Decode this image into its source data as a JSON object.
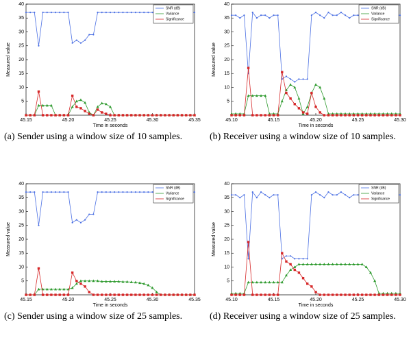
{
  "chart_data": [
    {
      "type": "line",
      "caption": "(a) Sender using a window size of 10 samples.",
      "xlabel": "Time in seconds",
      "ylabel": "Measured value",
      "xlim": [
        45.15,
        45.35
      ],
      "xticks": [
        45.15,
        {
          "value": 45.2,
          "label": "45.20"
        },
        45.25,
        {
          "value": 45.3,
          "label": "45.30"
        },
        45.35
      ],
      "ylim": [
        0,
        40
      ],
      "yticks": [
        5,
        10,
        15,
        20,
        25,
        30,
        35,
        40
      ],
      "legend": "upper right",
      "x": [
        45.15,
        45.155,
        45.16,
        45.165,
        45.17,
        45.175,
        45.18,
        45.185,
        45.19,
        45.195,
        45.2,
        45.205,
        45.21,
        45.215,
        45.22,
        45.225,
        45.23,
        45.235,
        45.24,
        45.245,
        45.25,
        45.255,
        45.26,
        45.265,
        45.27,
        45.275,
        45.28,
        45.285,
        45.29,
        45.295,
        45.3,
        45.305,
        45.31,
        45.315,
        45.32,
        45.325,
        45.33,
        45.335,
        45.34,
        45.345,
        45.35
      ],
      "series": [
        {
          "name": "SNR (dB)",
          "color": "#4a6fe3",
          "values": [
            37,
            37,
            37,
            25,
            37,
            37,
            37,
            37,
            37,
            37,
            37,
            26,
            27,
            26,
            27,
            29,
            29,
            37,
            37,
            37,
            37,
            37,
            37,
            37,
            37,
            37,
            37,
            37,
            37,
            37,
            37,
            37,
            37,
            37,
            37,
            37,
            37,
            37,
            37,
            37,
            37
          ]
        },
        {
          "name": "Variance",
          "color": "#2e9a2e",
          "values": [
            0,
            0,
            0,
            3.5,
            3.5,
            3.5,
            3.5,
            0,
            0,
            0,
            0,
            3,
            5,
            5.5,
            4.5,
            1,
            0,
            3,
            4.3,
            4,
            3,
            0,
            0,
            0,
            0,
            0,
            0,
            0,
            0,
            0,
            0,
            0,
            0,
            0,
            0,
            0,
            0,
            0,
            0,
            0,
            0
          ]
        },
        {
          "name": "Significance",
          "color": "#d62728",
          "values": [
            0,
            0,
            0,
            8.5,
            0,
            0,
            0,
            0,
            0,
            0,
            0,
            7,
            3,
            2.5,
            1.5,
            0.5,
            0,
            2,
            1,
            0.5,
            0,
            0,
            0,
            0,
            0,
            0,
            0,
            0,
            0,
            0,
            0,
            0,
            0,
            0,
            0,
            0,
            0,
            0,
            0,
            0,
            0
          ]
        }
      ]
    },
    {
      "type": "line",
      "caption": "(b) Receiver using a window size of 10 samples.",
      "xlabel": "Time in seconds",
      "ylabel": "Measured value",
      "xlim": [
        45.1,
        45.3
      ],
      "xticks": [
        {
          "value": 45.1,
          "label": "45.10"
        },
        45.15,
        {
          "value": 45.2,
          "label": "45.20"
        },
        45.25,
        {
          "value": 45.3,
          "label": "45.30"
        }
      ],
      "ylim": [
        0,
        40
      ],
      "yticks": [
        5,
        10,
        15,
        20,
        25,
        30,
        35,
        40
      ],
      "legend": "upper right",
      "x": [
        45.1,
        45.105,
        45.11,
        45.115,
        45.12,
        45.125,
        45.13,
        45.135,
        45.14,
        45.145,
        45.15,
        45.155,
        45.16,
        45.165,
        45.17,
        45.175,
        45.18,
        45.185,
        45.19,
        45.195,
        45.2,
        45.205,
        45.21,
        45.215,
        45.22,
        45.225,
        45.23,
        45.235,
        45.24,
        45.245,
        45.25,
        45.255,
        45.26,
        45.265,
        45.27,
        45.275,
        45.28,
        45.285,
        45.29,
        45.295,
        45.3
      ],
      "series": [
        {
          "name": "SNR (dB)",
          "color": "#4a6fe3",
          "values": [
            36,
            36,
            35,
            36,
            15,
            37,
            35,
            36,
            36,
            35,
            36,
            36,
            13,
            14,
            13,
            12,
            13,
            13,
            13,
            36,
            37,
            36,
            35,
            37,
            36,
            36,
            37,
            36,
            35,
            36,
            36,
            36,
            36,
            37,
            36,
            36,
            36,
            36,
            36,
            36,
            36
          ]
        },
        {
          "name": "Variance",
          "color": "#2e9a2e",
          "values": [
            0.5,
            0.5,
            0.5,
            0.5,
            7,
            7,
            7,
            7,
            7,
            0.5,
            0.5,
            0.5,
            5,
            9,
            11,
            10,
            6,
            0.5,
            3,
            8,
            11,
            10,
            6,
            0.5,
            0.5,
            0.5,
            0.5,
            0.5,
            0.5,
            0.5,
            0.5,
            0.5,
            0.5,
            0.5,
            0.5,
            0.5,
            0.5,
            0.5,
            0.5,
            0.5,
            0.5
          ]
        },
        {
          "name": "Significance",
          "color": "#d62728",
          "values": [
            0,
            0,
            0,
            0,
            17,
            0,
            0,
            0,
            0,
            0,
            0,
            0,
            15.5,
            8,
            6,
            4,
            2.5,
            1,
            0.5,
            8,
            3,
            1,
            0,
            0,
            0,
            0,
            0,
            0,
            0,
            0,
            0,
            0,
            0,
            0,
            0,
            0,
            0,
            0,
            0,
            0,
            0
          ]
        }
      ]
    },
    {
      "type": "line",
      "caption": "(c) Sender using a window size of 25 samples.",
      "xlabel": "Time in seconds",
      "ylabel": "Measured value",
      "xlim": [
        45.15,
        45.35
      ],
      "xticks": [
        45.15,
        {
          "value": 45.2,
          "label": "45.20"
        },
        45.25,
        {
          "value": 45.3,
          "label": "45.30"
        },
        45.35
      ],
      "ylim": [
        0,
        40
      ],
      "yticks": [
        5,
        10,
        15,
        20,
        25,
        30,
        35,
        40
      ],
      "legend": "upper right",
      "x": [
        45.15,
        45.155,
        45.16,
        45.165,
        45.17,
        45.175,
        45.18,
        45.185,
        45.19,
        45.195,
        45.2,
        45.205,
        45.21,
        45.215,
        45.22,
        45.225,
        45.23,
        45.235,
        45.24,
        45.245,
        45.25,
        45.255,
        45.26,
        45.265,
        45.27,
        45.275,
        45.28,
        45.285,
        45.29,
        45.295,
        45.3,
        45.305,
        45.31,
        45.315,
        45.32,
        45.325,
        45.33,
        45.335,
        45.34,
        45.345,
        45.35
      ],
      "series": [
        {
          "name": "SNR (dB)",
          "color": "#4a6fe3",
          "values": [
            37,
            37,
            37,
            25,
            37,
            37,
            37,
            37,
            37,
            37,
            37,
            26,
            27,
            26,
            27,
            29,
            29,
            37,
            37,
            37,
            37,
            37,
            37,
            37,
            37,
            37,
            37,
            37,
            37,
            37,
            37,
            37,
            37,
            37,
            37,
            37,
            37,
            37,
            37,
            37,
            37
          ]
        },
        {
          "name": "Variance",
          "color": "#2e9a2e",
          "values": [
            0,
            0,
            0,
            2,
            2,
            2,
            2,
            2,
            2,
            2,
            2,
            2.5,
            4,
            5,
            5,
            5,
            5,
            5,
            4.8,
            4.8,
            4.8,
            4.8,
            4.8,
            4.7,
            4.7,
            4.6,
            4.5,
            4.3,
            4,
            3.5,
            2.5,
            1,
            0,
            0,
            0,
            0,
            0,
            0,
            0,
            0,
            0
          ]
        },
        {
          "name": "Significance",
          "color": "#d62728",
          "values": [
            0,
            0,
            0,
            9.5,
            0,
            0,
            0,
            0,
            0,
            0,
            0,
            8,
            5,
            4,
            3,
            1,
            0,
            0,
            0,
            0,
            0,
            0,
            0,
            0,
            0,
            0,
            0,
            0,
            0,
            0,
            0,
            0,
            0,
            0,
            0,
            0,
            0,
            0,
            0,
            0,
            0
          ]
        }
      ]
    },
    {
      "type": "line",
      "caption": "(d) Receiver using a window size of 25 samples.",
      "xlabel": "Time in seconds",
      "ylabel": "Measured value",
      "xlim": [
        45.1,
        45.3
      ],
      "xticks": [
        {
          "value": 45.1,
          "label": "45.10"
        },
        45.15,
        {
          "value": 45.2,
          "label": "45.20"
        },
        45.25,
        {
          "value": 45.3,
          "label": "45.30"
        }
      ],
      "ylim": [
        0,
        40
      ],
      "yticks": [
        5,
        10,
        15,
        20,
        25,
        30,
        35,
        40
      ],
      "legend": "upper right",
      "x": [
        45.1,
        45.105,
        45.11,
        45.115,
        45.12,
        45.125,
        45.13,
        45.135,
        45.14,
        45.145,
        45.15,
        45.155,
        45.16,
        45.165,
        45.17,
        45.175,
        45.18,
        45.185,
        45.19,
        45.195,
        45.2,
        45.205,
        45.21,
        45.215,
        45.22,
        45.225,
        45.23,
        45.235,
        45.24,
        45.245,
        45.25,
        45.255,
        45.26,
        45.265,
        45.27,
        45.275,
        45.28,
        45.285,
        45.29,
        45.295,
        45.3
      ],
      "series": [
        {
          "name": "SNR (dB)",
          "color": "#4a6fe3",
          "values": [
            36,
            36,
            35,
            36,
            13,
            37,
            35,
            37,
            36,
            35,
            36,
            36,
            13,
            14,
            14,
            13,
            13,
            13,
            13,
            36,
            37,
            36,
            35,
            37,
            36,
            36,
            37,
            36,
            35,
            36,
            36,
            36,
            36,
            37,
            36,
            36,
            36,
            36,
            36,
            36,
            36
          ]
        },
        {
          "name": "Variance",
          "color": "#2e9a2e",
          "values": [
            0.5,
            0.5,
            0.5,
            0.5,
            4.5,
            4.5,
            4.5,
            4.5,
            4.5,
            4.5,
            4.5,
            4.5,
            4.5,
            7,
            9,
            10,
            11,
            11,
            11,
            11,
            11,
            11,
            11,
            11,
            11,
            11,
            11,
            11,
            11,
            11,
            11,
            11,
            10,
            8,
            5,
            0.5,
            0.5,
            0.5,
            0.5,
            0.5,
            0.5
          ]
        },
        {
          "name": "Significance",
          "color": "#d62728",
          "values": [
            0,
            0,
            0,
            0,
            19,
            0,
            0,
            0,
            0,
            0,
            0,
            0,
            15,
            12,
            11,
            9,
            8,
            6,
            4,
            3,
            1,
            0,
            0,
            0,
            0,
            0,
            0,
            0,
            0,
            0,
            0,
            0,
            0,
            0,
            0,
            0,
            0,
            0,
            0,
            0,
            0
          ]
        }
      ]
    }
  ]
}
